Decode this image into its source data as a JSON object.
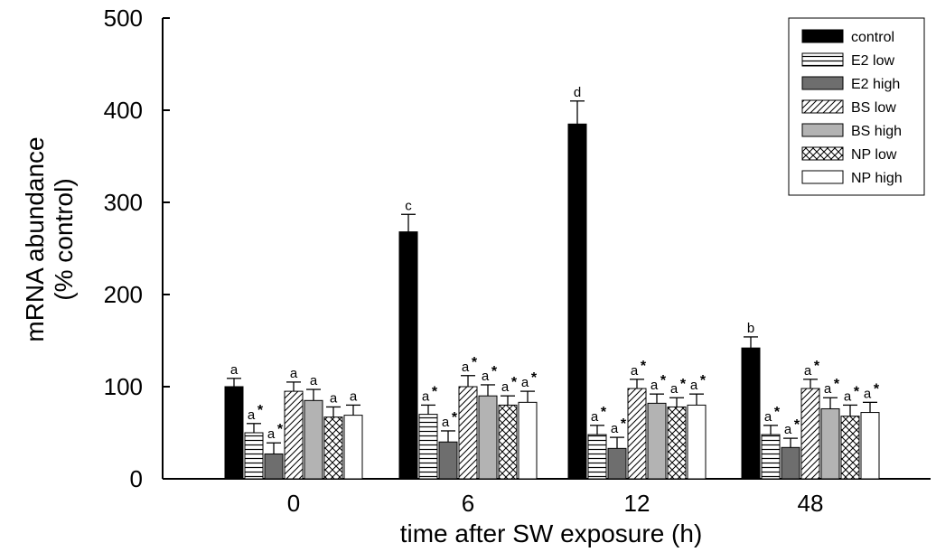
{
  "chart_data": {
    "type": "bar",
    "title": "",
    "xlabel": "time after SW exposure (h)",
    "ylabel_line1": "mRNA abundance",
    "ylabel_line2": "(% control)",
    "categories": [
      "0",
      "6",
      "12",
      "48"
    ],
    "ylim": [
      0,
      500
    ],
    "yticks": [
      0,
      100,
      200,
      300,
      400,
      500
    ],
    "legend_position": "top-right",
    "series": [
      {
        "name": "control",
        "fill": "solid-black",
        "values": [
          100,
          268,
          385,
          142
        ],
        "errors": [
          9,
          19,
          25,
          12
        ],
        "labels": [
          "a",
          "c",
          "d",
          "b"
        ],
        "significant": [
          false,
          false,
          false,
          false
        ]
      },
      {
        "name": "E2 low",
        "fill": "horizontal-lines",
        "values": [
          50,
          70,
          48,
          48
        ],
        "errors": [
          10,
          10,
          10,
          10
        ],
        "labels": [
          "a",
          "a",
          "a",
          "a"
        ],
        "significant": [
          true,
          true,
          true,
          true
        ]
      },
      {
        "name": "E2 high",
        "fill": "solid-dark-gray",
        "values": [
          27,
          40,
          33,
          34
        ],
        "errors": [
          12,
          12,
          12,
          10
        ],
        "labels": [
          "a",
          "a",
          "a",
          "a"
        ],
        "significant": [
          true,
          true,
          true,
          true
        ]
      },
      {
        "name": "BS low",
        "fill": "diagonal-lines",
        "values": [
          95,
          100,
          98,
          98
        ],
        "errors": [
          10,
          12,
          10,
          10
        ],
        "labels": [
          "a",
          "a",
          "a",
          "a"
        ],
        "significant": [
          false,
          true,
          true,
          true
        ]
      },
      {
        "name": "BS high",
        "fill": "solid-light-gray",
        "values": [
          85,
          90,
          82,
          76
        ],
        "errors": [
          12,
          12,
          10,
          12
        ],
        "labels": [
          "a",
          "a",
          "a",
          "a"
        ],
        "significant": [
          false,
          true,
          true,
          true
        ]
      },
      {
        "name": "NP low",
        "fill": "crosshatch",
        "values": [
          67,
          80,
          78,
          68
        ],
        "errors": [
          11,
          10,
          10,
          12
        ],
        "labels": [
          "a",
          "a",
          "a",
          "a"
        ],
        "significant": [
          false,
          true,
          true,
          true
        ]
      },
      {
        "name": "NP high",
        "fill": "white",
        "values": [
          69,
          83,
          80,
          72
        ],
        "errors": [
          11,
          12,
          12,
          11
        ],
        "labels": [
          "a",
          "a",
          "a",
          "a"
        ],
        "significant": [
          false,
          true,
          true,
          true
        ]
      }
    ]
  },
  "colors": {
    "black": "#000000",
    "dark_gray": "#6e6e6e",
    "light_gray": "#b3b3b3",
    "white": "#ffffff"
  }
}
